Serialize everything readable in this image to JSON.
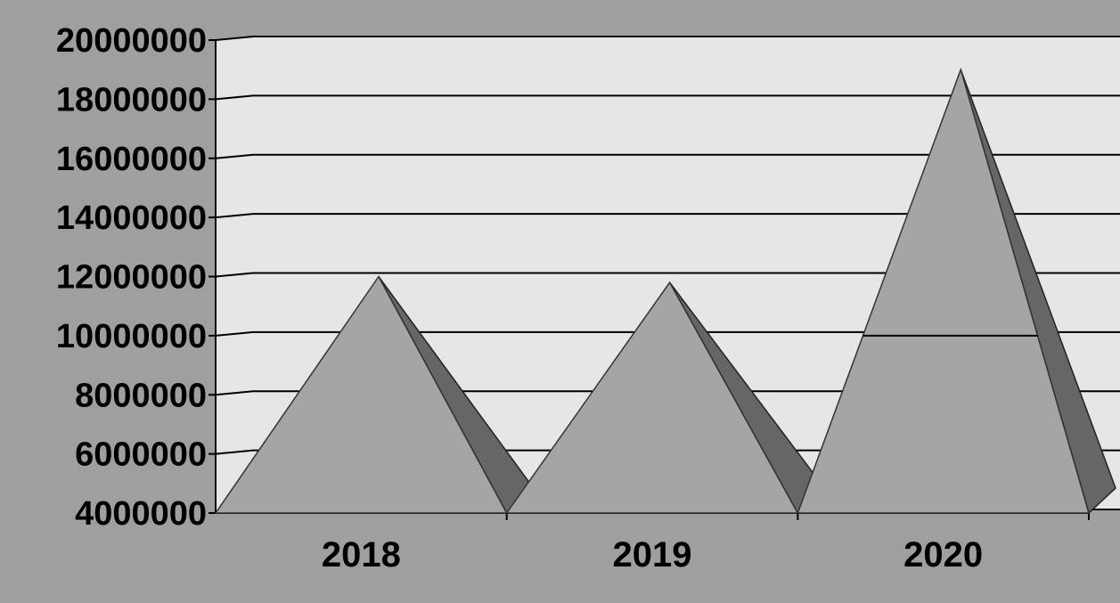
{
  "chart_data": {
    "type": "bar",
    "bar_shape": "pyramid-3d",
    "categories": [
      "2018",
      "2019",
      "2020"
    ],
    "values": [
      12000000,
      11800000,
      19000000
    ],
    "ylim": [
      4000000,
      20000000
    ],
    "y_ticks": [
      "4000000",
      "6000000",
      "8000000",
      "10000000",
      "12000000",
      "14000000",
      "16000000",
      "18000000",
      "20000000"
    ],
    "grid": true,
    "legend": "none"
  },
  "colors": {
    "page_background": "#9f9f9f",
    "plot_wall": "#e6e6e6",
    "pyramid_front": "#a5a5a5",
    "pyramid_side": "#666666",
    "grid_lines": "#000000"
  }
}
